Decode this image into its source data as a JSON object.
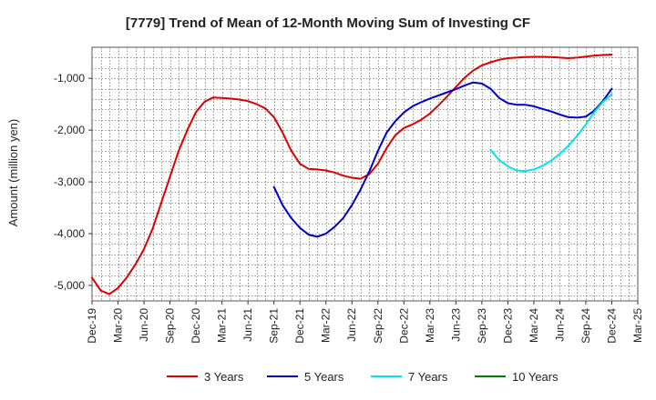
{
  "chart_data": {
    "type": "line",
    "title": "[7779]  Trend of Mean of 12-Month Moving Sum of Investing CF",
    "xlabel": "",
    "ylabel": "Amount (million yen)",
    "x_tick_labels": [
      "Dec-19",
      "Mar-20",
      "Jun-20",
      "Sep-20",
      "Dec-20",
      "Mar-21",
      "Jun-21",
      "Sep-21",
      "Dec-21",
      "Mar-22",
      "Jun-22",
      "Sep-22",
      "Dec-22",
      "Mar-23",
      "Jun-23",
      "Sep-23",
      "Dec-23",
      "Mar-24",
      "Jun-24",
      "Sep-24",
      "Dec-24",
      "Mar-25"
    ],
    "y_ticks": [
      -5000,
      -4000,
      -3000,
      -2000,
      -1000
    ],
    "y_tick_labels": [
      "-5,000",
      "-4,000",
      "-3,000",
      "-2,000",
      "-1,000"
    ],
    "ylim": [
      -5300,
      -400
    ],
    "x_range_months": [
      0,
      63
    ],
    "grid": true,
    "legend_position": "bottom",
    "series": [
      {
        "name": "3 Years",
        "color": "#e00000",
        "x": [
          0,
          1,
          2,
          3,
          4,
          5,
          6,
          7,
          8,
          9,
          10,
          11,
          12,
          13,
          14,
          15,
          16,
          17,
          18,
          19,
          20,
          21,
          22,
          23,
          24,
          25,
          26,
          27,
          28,
          29,
          30,
          31,
          32,
          33,
          34,
          35,
          36,
          37,
          38,
          39,
          40,
          41,
          42,
          43,
          44,
          45,
          46,
          47,
          48,
          49,
          50,
          51,
          52,
          53,
          54,
          55,
          56,
          57,
          58,
          59,
          60
        ],
        "values": [
          -4850,
          -5100,
          -5170,
          -5050,
          -4850,
          -4600,
          -4300,
          -3900,
          -3400,
          -2900,
          -2400,
          -2000,
          -1650,
          -1450,
          -1370,
          -1380,
          -1390,
          -1410,
          -1440,
          -1500,
          -1580,
          -1750,
          -2050,
          -2400,
          -2650,
          -2750,
          -2760,
          -2780,
          -2820,
          -2880,
          -2920,
          -2940,
          -2850,
          -2650,
          -2350,
          -2100,
          -1960,
          -1890,
          -1800,
          -1680,
          -1520,
          -1350,
          -1170,
          -990,
          -850,
          -750,
          -690,
          -640,
          -610,
          -600,
          -590,
          -585,
          -585,
          -590,
          -600,
          -610,
          -600,
          -580,
          -560,
          -550,
          -540
        ]
      },
      {
        "name": "5 Years",
        "color": "#0000cc",
        "x": [
          21,
          22,
          23,
          24,
          25,
          26,
          27,
          28,
          29,
          30,
          31,
          32,
          33,
          34,
          35,
          36,
          37,
          38,
          39,
          40,
          41,
          42,
          43,
          44,
          45,
          46,
          47,
          48,
          49,
          50,
          51,
          52,
          53,
          54,
          55,
          56,
          57,
          58,
          59,
          60
        ],
        "values": [
          -3100,
          -3450,
          -3700,
          -3890,
          -4020,
          -4060,
          -4000,
          -3870,
          -3700,
          -3450,
          -3150,
          -2800,
          -2400,
          -2050,
          -1830,
          -1660,
          -1540,
          -1460,
          -1390,
          -1330,
          -1270,
          -1210,
          -1140,
          -1080,
          -1100,
          -1200,
          -1380,
          -1480,
          -1510,
          -1510,
          -1540,
          -1590,
          -1640,
          -1700,
          -1750,
          -1760,
          -1740,
          -1620,
          -1430,
          -1200
        ]
      },
      {
        "name": "7 Years",
        "color": "#00e5e5",
        "x": [
          46,
          47,
          48,
          49,
          50,
          51,
          52,
          53,
          54,
          55,
          56,
          57,
          58,
          59,
          60
        ],
        "values": [
          -2380,
          -2580,
          -2700,
          -2780,
          -2790,
          -2760,
          -2690,
          -2590,
          -2460,
          -2300,
          -2110,
          -1890,
          -1650,
          -1450,
          -1310
        ]
      },
      {
        "name": "10 Years",
        "color": "#008000",
        "x": [],
        "values": []
      }
    ]
  }
}
